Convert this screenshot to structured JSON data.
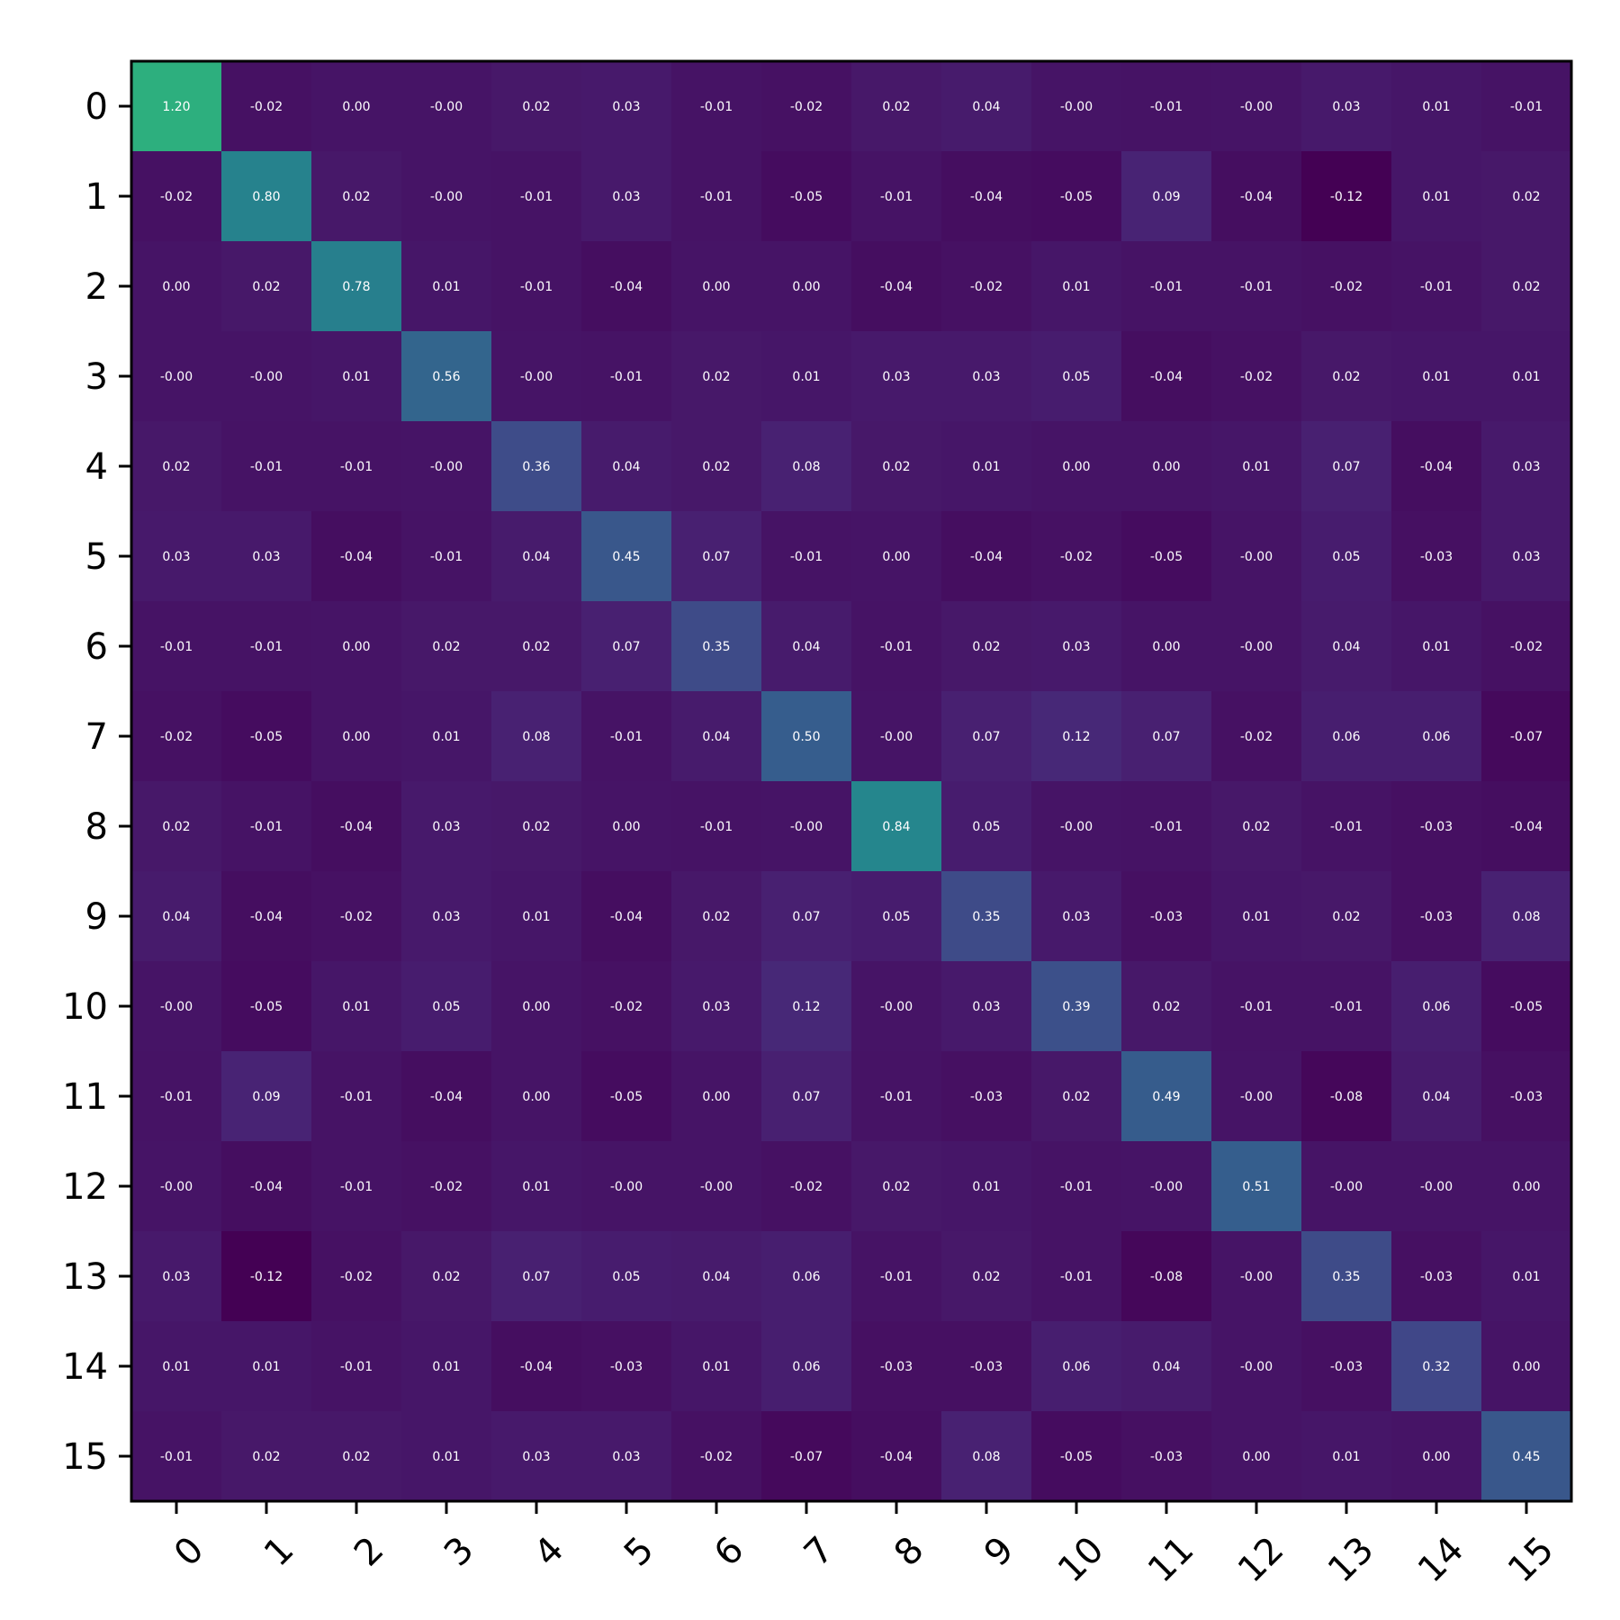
{
  "chart_data": {
    "type": "heatmap",
    "title": "",
    "xlabel": "",
    "ylabel": "",
    "x_categories": [
      "0",
      "1",
      "2",
      "3",
      "4",
      "5",
      "6",
      "7",
      "8",
      "9",
      "10",
      "11",
      "12",
      "13",
      "14",
      "15"
    ],
    "y_categories": [
      "0",
      "1",
      "2",
      "3",
      "4",
      "5",
      "6",
      "7",
      "8",
      "9",
      "10",
      "11",
      "12",
      "13",
      "14",
      "15"
    ],
    "colormap": "viridis",
    "vmin": -0.12,
    "vmax": 1.2,
    "grid": false,
    "values": [
      [
        1.2,
        -0.02,
        0.0,
        -0.0,
        0.02,
        0.03,
        -0.01,
        -0.02,
        0.02,
        0.04,
        -0.0,
        -0.01,
        -0.0,
        0.03,
        0.01,
        -0.01
      ],
      [
        -0.02,
        0.8,
        0.02,
        -0.0,
        -0.01,
        0.03,
        -0.01,
        -0.05,
        -0.01,
        -0.04,
        -0.05,
        0.09,
        -0.04,
        -0.12,
        0.01,
        0.02
      ],
      [
        0.0,
        0.02,
        0.78,
        0.01,
        -0.01,
        -0.04,
        0.0,
        0.0,
        -0.04,
        -0.02,
        0.01,
        -0.01,
        -0.01,
        -0.02,
        -0.01,
        0.02
      ],
      [
        -0.0,
        -0.0,
        0.01,
        0.56,
        -0.0,
        -0.01,
        0.02,
        0.01,
        0.03,
        0.03,
        0.05,
        -0.04,
        -0.02,
        0.02,
        0.01,
        0.01
      ],
      [
        0.02,
        -0.01,
        -0.01,
        -0.0,
        0.36,
        0.04,
        0.02,
        0.08,
        0.02,
        0.01,
        0.0,
        0.0,
        0.01,
        0.07,
        -0.04,
        0.03
      ],
      [
        0.03,
        0.03,
        -0.04,
        -0.01,
        0.04,
        0.45,
        0.07,
        -0.01,
        0.0,
        -0.04,
        -0.02,
        -0.05,
        -0.0,
        0.05,
        -0.03,
        0.03
      ],
      [
        -0.01,
        -0.01,
        0.0,
        0.02,
        0.02,
        0.07,
        0.35,
        0.04,
        -0.01,
        0.02,
        0.03,
        0.0,
        -0.0,
        0.04,
        0.01,
        -0.02
      ],
      [
        -0.02,
        -0.05,
        0.0,
        0.01,
        0.08,
        -0.01,
        0.04,
        0.5,
        -0.0,
        0.07,
        0.12,
        0.07,
        -0.02,
        0.06,
        0.06,
        -0.07
      ],
      [
        0.02,
        -0.01,
        -0.04,
        0.03,
        0.02,
        0.0,
        -0.01,
        -0.0,
        0.84,
        0.05,
        -0.0,
        -0.01,
        0.02,
        -0.01,
        -0.03,
        -0.04
      ],
      [
        0.04,
        -0.04,
        -0.02,
        0.03,
        0.01,
        -0.04,
        0.02,
        0.07,
        0.05,
        0.35,
        0.03,
        -0.03,
        0.01,
        0.02,
        -0.03,
        0.08
      ],
      [
        -0.0,
        -0.05,
        0.01,
        0.05,
        0.0,
        -0.02,
        0.03,
        0.12,
        -0.0,
        0.03,
        0.39,
        0.02,
        -0.01,
        -0.01,
        0.06,
        -0.05
      ],
      [
        -0.01,
        0.09,
        -0.01,
        -0.04,
        0.0,
        -0.05,
        0.0,
        0.07,
        -0.01,
        -0.03,
        0.02,
        0.49,
        -0.0,
        -0.08,
        0.04,
        -0.03
      ],
      [
        -0.0,
        -0.04,
        -0.01,
        -0.02,
        0.01,
        -0.0,
        -0.0,
        -0.02,
        0.02,
        0.01,
        -0.01,
        -0.0,
        0.51,
        -0.0,
        -0.0,
        0.0
      ],
      [
        0.03,
        -0.12,
        -0.02,
        0.02,
        0.07,
        0.05,
        0.04,
        0.06,
        -0.01,
        0.02,
        -0.01,
        -0.08,
        -0.0,
        0.35,
        -0.03,
        0.01
      ],
      [
        0.01,
        0.01,
        -0.01,
        0.01,
        -0.04,
        -0.03,
        0.01,
        0.06,
        -0.03,
        -0.03,
        0.06,
        0.04,
        -0.0,
        -0.03,
        0.32,
        0.0
      ],
      [
        -0.01,
        0.02,
        0.02,
        0.01,
        0.03,
        0.03,
        -0.02,
        -0.07,
        -0.04,
        0.08,
        -0.05,
        -0.03,
        0.0,
        0.01,
        0.0,
        0.45
      ]
    ],
    "cell_labels": [
      [
        "1.20",
        "-0.02",
        "0.00",
        "-0.00",
        "0.02",
        "0.03",
        "-0.01",
        "-0.02",
        "0.02",
        "0.04",
        "-0.00",
        "-0.01",
        "-0.00",
        "0.03",
        "0.01",
        "-0.01"
      ],
      [
        "-0.02",
        "0.80",
        "0.02",
        "-0.00",
        "-0.01",
        "0.03",
        "-0.01",
        "-0.05",
        "-0.01",
        "-0.04",
        "-0.05",
        "0.09",
        "-0.04",
        "-0.12",
        "0.01",
        "0.02"
      ],
      [
        "0.00",
        "0.02",
        "0.78",
        "0.01",
        "-0.01",
        "-0.04",
        "0.00",
        "0.00",
        "-0.04",
        "-0.02",
        "0.01",
        "-0.01",
        "-0.01",
        "-0.02",
        "-0.01",
        "0.02"
      ],
      [
        "-0.00",
        "-0.00",
        "0.01",
        "0.56",
        "-0.00",
        "-0.01",
        "0.02",
        "0.01",
        "0.03",
        "0.03",
        "0.05",
        "-0.04",
        "-0.02",
        "0.02",
        "0.01",
        "0.01"
      ],
      [
        "0.02",
        "-0.01",
        "-0.01",
        "-0.00",
        "0.36",
        "0.04",
        "0.02",
        "0.08",
        "0.02",
        "0.01",
        "0.00",
        "0.00",
        "0.01",
        "0.07",
        "-0.04",
        "0.03"
      ],
      [
        "0.03",
        "0.03",
        "-0.04",
        "-0.01",
        "0.04",
        "0.45",
        "0.07",
        "-0.01",
        "0.00",
        "-0.04",
        "-0.02",
        "-0.05",
        "-0.00",
        "0.05",
        "-0.03",
        "0.03"
      ],
      [
        "-0.01",
        "-0.01",
        "0.00",
        "0.02",
        "0.02",
        "0.07",
        "0.35",
        "0.04",
        "-0.01",
        "0.02",
        "0.03",
        "0.00",
        "-0.00",
        "0.04",
        "0.01",
        "-0.02"
      ],
      [
        "-0.02",
        "-0.05",
        "0.00",
        "0.01",
        "0.08",
        "-0.01",
        "0.04",
        "0.50",
        "-0.00",
        "0.07",
        "0.12",
        "0.07",
        "-0.02",
        "0.06",
        "0.06",
        "-0.07"
      ],
      [
        "0.02",
        "-0.01",
        "-0.04",
        "0.03",
        "0.02",
        "0.00",
        "-0.01",
        "-0.00",
        "0.84",
        "0.05",
        "-0.00",
        "-0.01",
        "0.02",
        "-0.01",
        "-0.03",
        "-0.04"
      ],
      [
        "0.04",
        "-0.04",
        "-0.02",
        "0.03",
        "0.01",
        "-0.04",
        "0.02",
        "0.07",
        "0.05",
        "0.35",
        "0.03",
        "-0.03",
        "0.01",
        "0.02",
        "-0.03",
        "0.08"
      ],
      [
        "-0.00",
        "-0.05",
        "0.01",
        "0.05",
        "0.00",
        "-0.02",
        "0.03",
        "0.12",
        "-0.00",
        "0.03",
        "0.39",
        "0.02",
        "-0.01",
        "-0.01",
        "0.06",
        "-0.05"
      ],
      [
        "-0.01",
        "0.09",
        "-0.01",
        "-0.04",
        "0.00",
        "-0.05",
        "0.00",
        "0.07",
        "-0.01",
        "-0.03",
        "0.02",
        "0.49",
        "-0.00",
        "-0.08",
        "0.04",
        "-0.03"
      ],
      [
        "-0.00",
        "-0.04",
        "-0.01",
        "-0.02",
        "0.01",
        "-0.00",
        "-0.00",
        "-0.02",
        "0.02",
        "0.01",
        "-0.01",
        "-0.00",
        "0.51",
        "-0.00",
        "-0.00",
        "0.00"
      ],
      [
        "0.03",
        "-0.12",
        "-0.02",
        "0.02",
        "0.07",
        "0.05",
        "0.04",
        "0.06",
        "-0.01",
        "0.02",
        "-0.01",
        "-0.08",
        "-0.00",
        "0.35",
        "-0.03",
        "0.01"
      ],
      [
        "0.01",
        "0.01",
        "-0.01",
        "0.01",
        "-0.04",
        "-0.03",
        "0.01",
        "0.06",
        "-0.03",
        "-0.03",
        "0.06",
        "0.04",
        "-0.00",
        "-0.03",
        "0.32",
        "0.00"
      ],
      [
        "-0.01",
        "0.02",
        "0.02",
        "0.01",
        "0.03",
        "0.03",
        "-0.02",
        "-0.07",
        "-0.04",
        "0.08",
        "-0.05",
        "-0.03",
        "0.00",
        "0.01",
        "0.00",
        "0.45"
      ]
    ]
  }
}
